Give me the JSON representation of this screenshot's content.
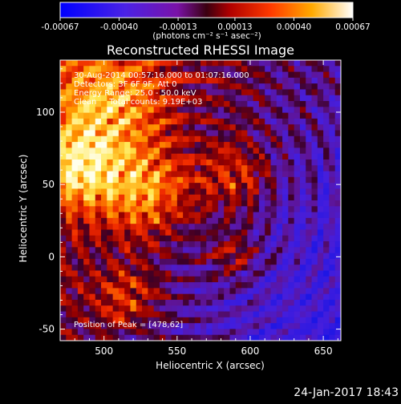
{
  "chart_data": {
    "type": "heatmap",
    "title": "Reconstructed RHESSI Image",
    "xlabel": "Heliocentric X (arcsec)",
    "ylabel": "Heliocentric Y (arcsec)",
    "xlim": [
      470,
      662
    ],
    "ylim": [
      -58,
      136
    ],
    "x_ticks": [
      {
        "value": 500,
        "label": "500"
      },
      {
        "value": 550,
        "label": "550"
      },
      {
        "value": 600,
        "label": "600"
      },
      {
        "value": 650,
        "label": "650"
      }
    ],
    "y_ticks": [
      {
        "value": -50,
        "label": "-50"
      },
      {
        "value": 0,
        "label": "0"
      },
      {
        "value": 50,
        "label": "50"
      },
      {
        "value": 100,
        "label": "100"
      }
    ],
    "colorbar": {
      "range": [
        -0.00067,
        0.00067
      ],
      "tick_labels": [
        "-0.00067",
        "-0.00040",
        "-0.00013",
        "0.00013",
        "0.00040",
        "0.00067"
      ],
      "tick_values": [
        -0.00067,
        -0.0004,
        -0.00013,
        0.00013,
        0.0004,
        0.00067
      ],
      "units": "(photons cm⁻² s⁻¹ asec⁻²)",
      "colors": [
        "#0000ff",
        "#5522cc",
        "#7a0f3a",
        "#ff2a00",
        "#ff9c00",
        "#ffffff"
      ]
    },
    "annotations": {
      "time_range": "30-Aug-2014 00:57:16.000 to 01:07:16.000",
      "detectors": "Detectors: 3F 6F 9F, Att 0",
      "energy_range": "Energy Range: 25.0 - 50.0 keV",
      "clean_counts": "Clean     Total counts: 9.19E+03",
      "peak_position": "Position of Peak = [478,62]"
    },
    "peak": {
      "x": 478,
      "y": 62
    },
    "grid": false
  },
  "footer": {
    "date": "24-Jan-2017 18:43"
  }
}
